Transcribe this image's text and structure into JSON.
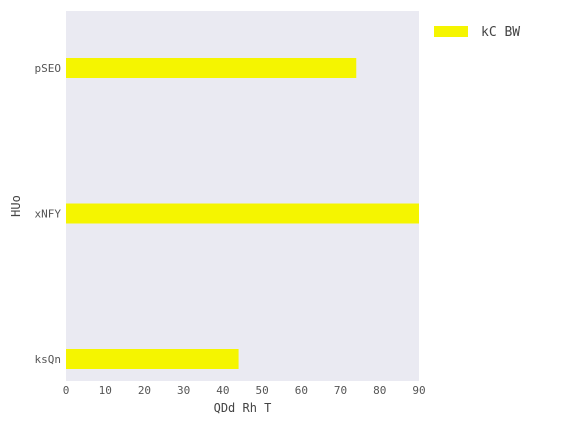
{
  "chart_data": {
    "type": "bar",
    "orientation": "horizontal",
    "categories": [
      "pSEO",
      "xNFY",
      "ksQn"
    ],
    "series": [
      {
        "name": "kC BW",
        "values": [
          74,
          90,
          44
        ],
        "color": "#f5f500"
      }
    ],
    "xlabel": "QDd Rh T",
    "ylabel": "HUo",
    "xlim": [
      0,
      90
    ],
    "xticks": [
      "0",
      "10",
      "20",
      "30",
      "40",
      "50",
      "60",
      "70",
      "80",
      "90"
    ],
    "grid": true,
    "legend_position": "top-right",
    "plot_background": "#eaeaf2"
  }
}
